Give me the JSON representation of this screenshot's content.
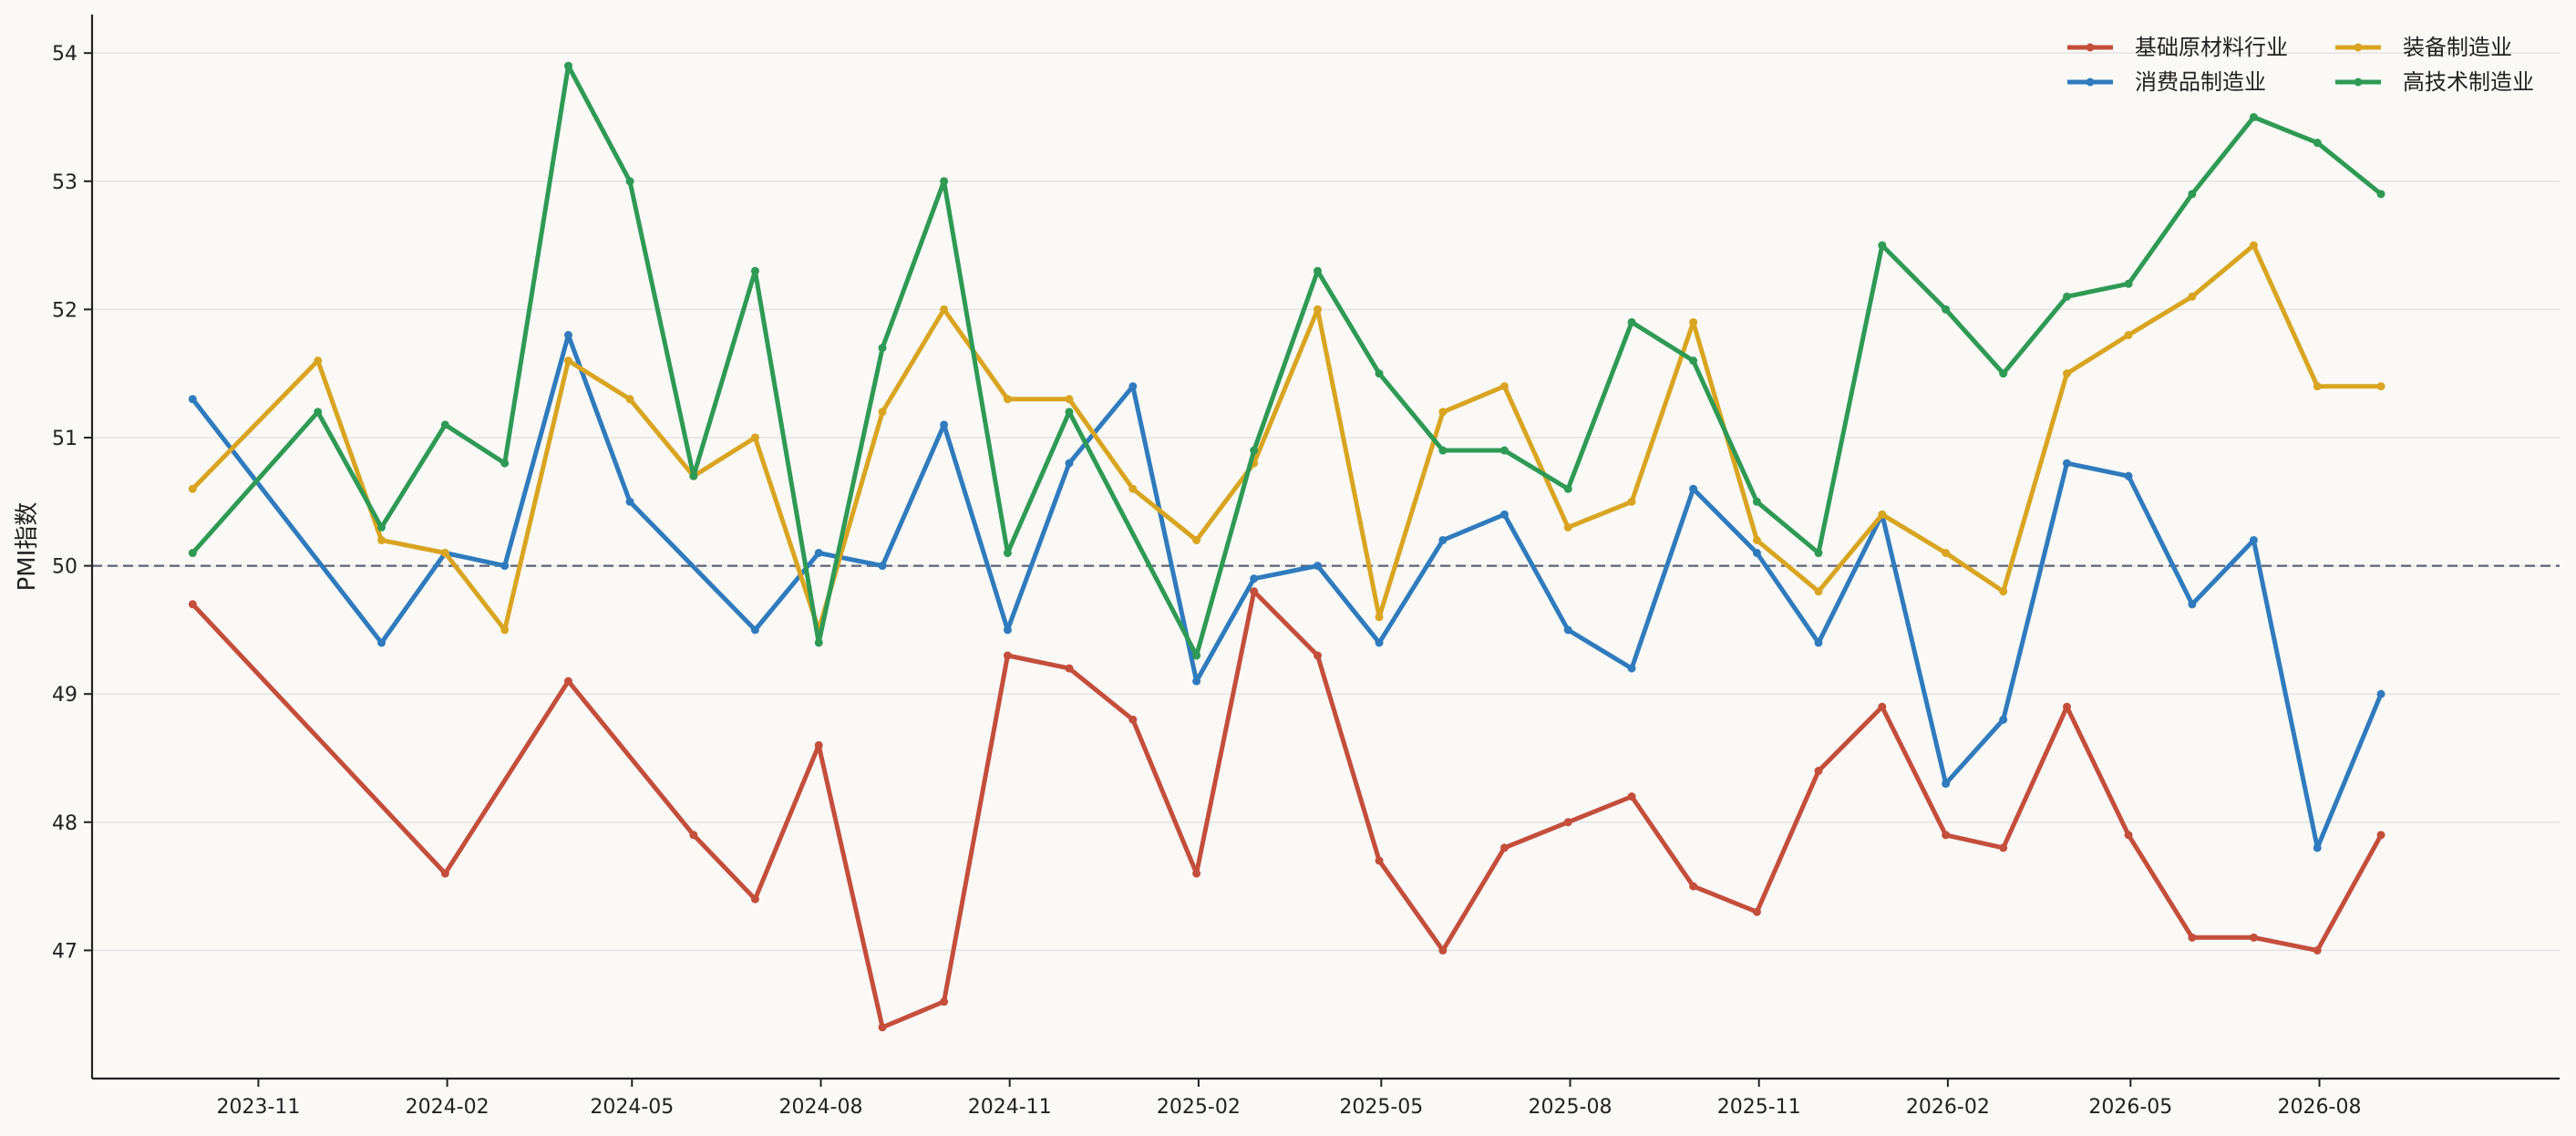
{
  "chart_data": {
    "type": "line",
    "title": "",
    "xlabel": "",
    "ylabel": "PMI指数",
    "ylim": [
      46.0,
      54.3
    ],
    "xlim": [
      "2023-08-12",
      "2026-11-26"
    ],
    "y_ticks": [
      47,
      48,
      49,
      50,
      51,
      52,
      53,
      54
    ],
    "x_ticks": [
      "2023-11",
      "2024-02",
      "2024-05",
      "2024-08",
      "2024-11",
      "2025-02",
      "2025-05",
      "2025-08",
      "2025-11",
      "2026-02",
      "2026-05",
      "2026-08"
    ],
    "x_tick_dates": [
      "2023-11-01",
      "2024-02-01",
      "2024-05-01",
      "2024-08-01",
      "2024-11-01",
      "2025-02-01",
      "2025-05-01",
      "2025-08-01",
      "2025-11-01",
      "2026-02-01",
      "2026-05-01",
      "2026-08-01"
    ],
    "grid": "horizontal",
    "legend_position": "top-right",
    "reference_line": {
      "y": 50,
      "style": "dashed",
      "color": "#5a6275"
    },
    "x": [
      "2023-09-30",
      "2023-10-31",
      "2023-11-30",
      "2023-12-31",
      "2024-01-31",
      "2024-02-29",
      "2024-03-31",
      "2024-04-30",
      "2024-05-31",
      "2024-06-30",
      "2024-07-31",
      "2024-08-31",
      "2024-09-30",
      "2024-10-31",
      "2024-11-30",
      "2024-12-31",
      "2025-01-31",
      "2025-02-28",
      "2025-03-31",
      "2025-04-30",
      "2025-05-31",
      "2025-06-30",
      "2025-07-31",
      "2025-08-31",
      "2025-09-30",
      "2025-10-31",
      "2025-11-30",
      "2025-12-31",
      "2026-01-31",
      "2026-02-28",
      "2026-03-31",
      "2026-04-30",
      "2026-05-31",
      "2026-06-30",
      "2026-07-31",
      "2026-08-31",
      "2026-09-30"
    ],
    "series": [
      {
        "name": "基础原材料行业",
        "color": "#c44e3c",
        "values": [
          49.7,
          null,
          null,
          null,
          47.6,
          null,
          49.1,
          null,
          47.9,
          47.4,
          48.6,
          46.4,
          46.6,
          49.3,
          49.2,
          48.8,
          47.6,
          49.8,
          49.3,
          47.7,
          47.0,
          47.8,
          48.0,
          48.2,
          47.5,
          47.3,
          48.4,
          48.9,
          47.9,
          47.8,
          48.9,
          47.9,
          47.1,
          47.1,
          47.0,
          47.9,
          null
        ]
      },
      {
        "name": "消费品制造业",
        "color": "#2f7bbd",
        "values": [
          51.3,
          null,
          null,
          49.4,
          50.1,
          50.0,
          51.8,
          50.5,
          null,
          49.5,
          50.1,
          50.0,
          51.1,
          49.5,
          50.8,
          51.4,
          49.1,
          49.9,
          50.0,
          49.4,
          50.2,
          50.4,
          49.5,
          49.2,
          50.6,
          50.1,
          49.4,
          50.4,
          48.3,
          48.8,
          50.8,
          50.7,
          49.7,
          50.2,
          47.8,
          49.0,
          null
        ]
      },
      {
        "name": "装备制造业",
        "color": "#d9a521",
        "values": [
          50.6,
          null,
          51.6,
          50.2,
          50.1,
          49.5,
          51.6,
          51.3,
          50.7,
          51.0,
          49.5,
          51.2,
          52.0,
          51.3,
          51.3,
          50.6,
          50.2,
          50.8,
          52.0,
          49.6,
          51.2,
          51.4,
          50.3,
          50.5,
          51.9,
          50.2,
          49.8,
          50.4,
          50.1,
          49.8,
          51.5,
          51.8,
          52.1,
          52.5,
          51.4,
          51.4,
          null
        ]
      },
      {
        "name": "高技术制造业",
        "color": "#2e9a55",
        "values": [
          50.1,
          null,
          51.2,
          50.3,
          51.1,
          50.8,
          53.9,
          53.0,
          50.7,
          52.3,
          49.4,
          51.7,
          53.0,
          50.1,
          51.2,
          null,
          49.3,
          50.9,
          52.3,
          51.5,
          50.9,
          50.9,
          50.6,
          51.9,
          51.6,
          50.5,
          50.1,
          52.5,
          52.0,
          51.5,
          52.1,
          52.2,
          52.9,
          53.5,
          53.3,
          52.9,
          null
        ]
      }
    ]
  }
}
